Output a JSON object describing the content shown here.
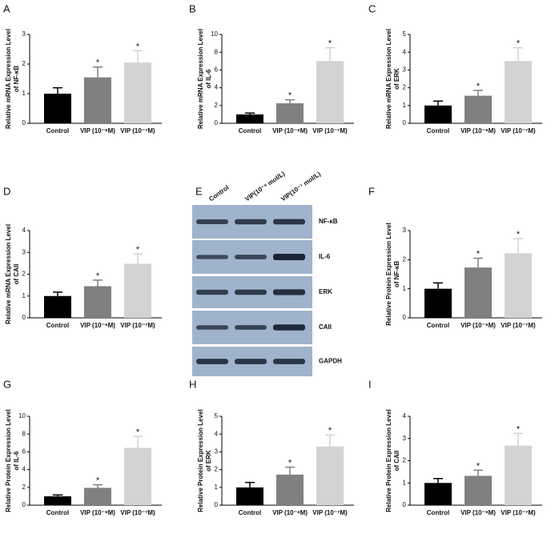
{
  "chart_data": [
    {
      "type": "bar",
      "panel": "A",
      "ylabel": [
        "Relative mRNA Expression Level",
        "of NF-κB"
      ],
      "categories": [
        "Control",
        "VIP (10⁻⁸M)",
        "VIP (10⁻⁷M)"
      ],
      "values": [
        1.0,
        1.55,
        2.05
      ],
      "errors": [
        0.2,
        0.35,
        0.4
      ],
      "significance": [
        null,
        "*",
        "*"
      ],
      "colors": [
        "#000000",
        "#808080",
        "#d3d3d3"
      ],
      "ylim": [
        0,
        3
      ],
      "yticks": [
        0,
        1,
        2,
        3
      ]
    },
    {
      "type": "bar",
      "panel": "B",
      "ylabel": [
        "Relative mRNA Expression Level",
        "of IL-6"
      ],
      "categories": [
        "Control",
        "VIP (10⁻⁸M)",
        "VIP (10⁻⁷M)"
      ],
      "values": [
        1.0,
        2.25,
        7.0
      ],
      "errors": [
        0.15,
        0.4,
        1.5
      ],
      "significance": [
        null,
        "*",
        "*"
      ],
      "colors": [
        "#000000",
        "#808080",
        "#d3d3d3"
      ],
      "ylim": [
        0,
        10
      ],
      "yticks": [
        0,
        2,
        4,
        6,
        8,
        10
      ]
    },
    {
      "type": "bar",
      "panel": "C",
      "ylabel": [
        "Relative mRNA Expression Level",
        "of ERK"
      ],
      "categories": [
        "Control",
        "VIP (10⁻⁸M)",
        "VIP (10⁻⁷M)"
      ],
      "values": [
        1.0,
        1.55,
        3.5
      ],
      "errors": [
        0.25,
        0.3,
        0.75
      ],
      "significance": [
        null,
        "*",
        "*"
      ],
      "colors": [
        "#000000",
        "#808080",
        "#d3d3d3"
      ],
      "ylim": [
        0,
        5
      ],
      "yticks": [
        0,
        1,
        2,
        3,
        4,
        5
      ]
    },
    {
      "type": "bar",
      "panel": "D",
      "ylabel": [
        "Relative mRNA Expression Level",
        "of CAII"
      ],
      "categories": [
        "Control",
        "VIP (10⁻⁸M)",
        "VIP (10⁻⁷M)"
      ],
      "values": [
        1.0,
        1.45,
        2.48
      ],
      "errors": [
        0.18,
        0.28,
        0.45
      ],
      "significance": [
        null,
        "*",
        "*"
      ],
      "colors": [
        "#000000",
        "#808080",
        "#d3d3d3"
      ],
      "ylim": [
        0,
        4
      ],
      "yticks": [
        0,
        1,
        2,
        3,
        4
      ]
    },
    {
      "type": "bar",
      "panel": "F",
      "ylabel": [
        "Relative Protein Expression Level",
        "of NF-κB"
      ],
      "categories": [
        "Control",
        "VIP (10⁻⁸M)",
        "VIP (10⁻⁷M)"
      ],
      "values": [
        1.0,
        1.73,
        2.22
      ],
      "errors": [
        0.2,
        0.32,
        0.5
      ],
      "significance": [
        null,
        "*",
        "*"
      ],
      "colors": [
        "#000000",
        "#808080",
        "#d3d3d3"
      ],
      "ylim": [
        0,
        3
      ],
      "yticks": [
        0,
        1,
        2,
        3
      ]
    },
    {
      "type": "bar",
      "panel": "G",
      "ylabel": [
        "Relative Protein Expression Level",
        "of IL-6"
      ],
      "categories": [
        "Control",
        "VIP (10⁻⁸M)",
        "VIP (10⁻⁷M)"
      ],
      "values": [
        1.0,
        1.95,
        6.45
      ],
      "errors": [
        0.15,
        0.35,
        1.3
      ],
      "significance": [
        null,
        "*",
        "*"
      ],
      "colors": [
        "#000000",
        "#808080",
        "#d3d3d3"
      ],
      "ylim": [
        0,
        10
      ],
      "yticks": [
        0,
        2,
        4,
        6,
        8,
        10
      ]
    },
    {
      "type": "bar",
      "panel": "H",
      "ylabel": [
        "Relative Protein Expression Level",
        "of ERK"
      ],
      "categories": [
        "Control",
        "VIP (10⁻⁸M)",
        "VIP (10⁻⁷M)"
      ],
      "values": [
        1.0,
        1.72,
        3.3
      ],
      "errors": [
        0.28,
        0.42,
        0.65
      ],
      "significance": [
        null,
        "*",
        "*"
      ],
      "colors": [
        "#000000",
        "#808080",
        "#d3d3d3"
      ],
      "ylim": [
        0,
        5
      ],
      "yticks": [
        0,
        1,
        2,
        3,
        4,
        5
      ]
    },
    {
      "type": "bar",
      "panel": "I",
      "ylabel": [
        "Relative Protein Expression Level",
        "of CAII"
      ],
      "categories": [
        "Control",
        "VIP (10⁻⁸M)",
        "VIP (10⁻⁷M)"
      ],
      "values": [
        1.0,
        1.32,
        2.68
      ],
      "errors": [
        0.2,
        0.25,
        0.55
      ],
      "significance": [
        null,
        "*",
        "*"
      ],
      "colors": [
        "#000000",
        "#808080",
        "#d3d3d3"
      ],
      "ylim": [
        0,
        4
      ],
      "yticks": [
        0,
        1,
        2,
        3,
        4
      ]
    }
  ],
  "blot": {
    "panel": "E",
    "columns": [
      "Control",
      "VIP(10⁻⁸ mol/L)",
      "VIP(10⁻⁷ mol/L)"
    ],
    "rows": [
      "NF-κB",
      "IL-6",
      "ERK",
      "CAII",
      "GAPDH"
    ]
  }
}
